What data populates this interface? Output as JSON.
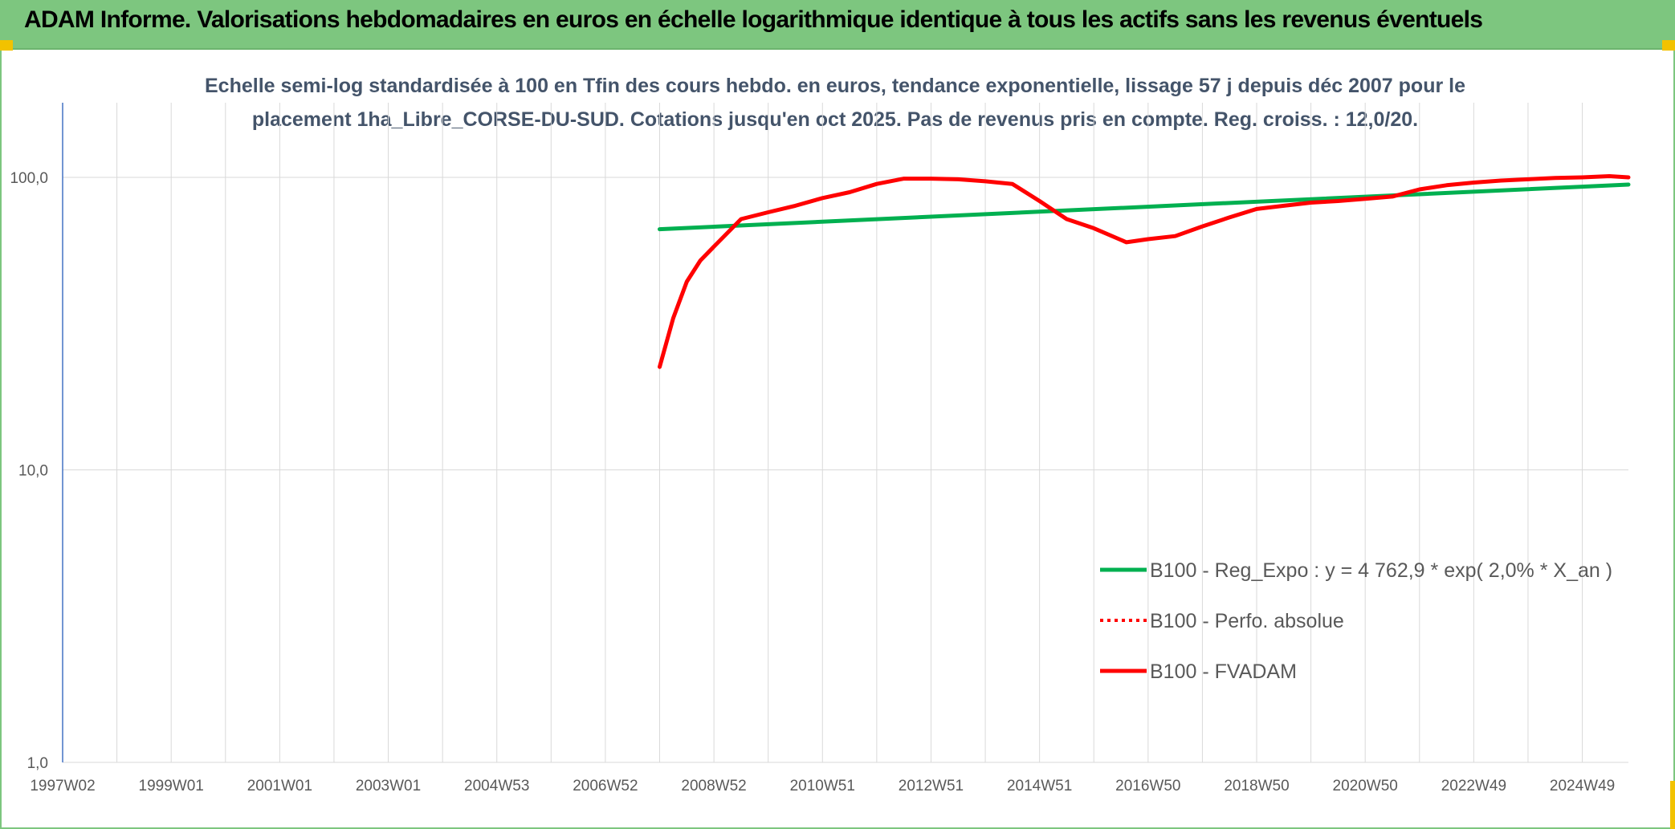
{
  "header": {
    "title": "ADAM Informe. Valorisations hebdomadaires en euros en échelle logarithmique identique à tous les actifs sans les revenus éventuels"
  },
  "colors": {
    "header_bg": "#7dc67f",
    "corner_accent": "#f2c200",
    "trend_line": "#00b050",
    "fvadam_line": "#ff0000",
    "perfo_line": "#ff0000",
    "grid": "#d9d9d9",
    "axis": "#4472c4"
  },
  "chart_data": {
    "type": "line",
    "title": "",
    "subtitle_lines": [
      "Echelle semi-log standardisée à 100 en Tfin des cours hebdo. en euros, tendance exponentielle, lissage 57 j depuis déc 2007 pour le",
      "placement 1ha_Libre_CORSE-DU-SUD. Cotations jusqu'en oct 2025. Pas de revenus pris en compte. Reg. croiss. : 12,0/20."
    ],
    "xlabel": "",
    "ylabel": "",
    "y_scale": "log",
    "ylim": [
      1,
      180
    ],
    "y_ticks": [
      {
        "value": 1,
        "label": "1,0"
      },
      {
        "value": 10,
        "label": "10,0"
      },
      {
        "value": 100,
        "label": "100,0"
      }
    ],
    "xlim": [
      1997.0,
      2025.85
    ],
    "x_ticks": [
      {
        "value": 1997.0,
        "label": "1997W02"
      },
      {
        "value": 1999.0,
        "label": "1999W01"
      },
      {
        "value": 2001.0,
        "label": "2001W01"
      },
      {
        "value": 2003.0,
        "label": "2003W01"
      },
      {
        "value": 2005.0,
        "label": "2004W53"
      },
      {
        "value": 2007.0,
        "label": "2006W52"
      },
      {
        "value": 2009.0,
        "label": "2008W52"
      },
      {
        "value": 2011.0,
        "label": "2010W51"
      },
      {
        "value": 2013.0,
        "label": "2012W51"
      },
      {
        "value": 2015.0,
        "label": "2014W51"
      },
      {
        "value": 2017.0,
        "label": "2016W50"
      },
      {
        "value": 2019.0,
        "label": "2018W50"
      },
      {
        "value": 2021.0,
        "label": "2020W50"
      },
      {
        "value": 2023.0,
        "label": "2022W49"
      },
      {
        "value": 2025.0,
        "label": "2024W49"
      }
    ],
    "x_gridlines": [
      1997.0,
      1998.0,
      1999.0,
      2000.0,
      2001.0,
      2002.0,
      2003.0,
      2004.0,
      2005.0,
      2006.0,
      2007.0,
      2008.0,
      2009.0,
      2010.0,
      2011.0,
      2012.0,
      2013.0,
      2014.0,
      2015.0,
      2016.0,
      2017.0,
      2018.0,
      2019.0,
      2020.0,
      2021.0,
      2022.0,
      2023.0,
      2024.0,
      2025.0
    ],
    "grid": true,
    "legend_position": "right-middle",
    "series": [
      {
        "name": "B100 - Reg_Expo : y = 4 762,9 * exp( 2,0% *  X_an )",
        "color": "#00b050",
        "style": "solid",
        "points": [
          [
            2008.0,
            66.5
          ],
          [
            2025.85,
            94.5
          ]
        ]
      },
      {
        "name": "B100 - Perfo. absolue",
        "color": "#ff0000",
        "style": "dotted",
        "points": []
      },
      {
        "name": "B100 - FVADAM",
        "color": "#ff0000",
        "style": "solid",
        "points": [
          [
            2008.0,
            22.5
          ],
          [
            2008.25,
            33
          ],
          [
            2008.5,
            44
          ],
          [
            2008.75,
            52
          ],
          [
            2009.0,
            58
          ],
          [
            2009.5,
            72
          ],
          [
            2010.0,
            76
          ],
          [
            2010.5,
            80
          ],
          [
            2011.0,
            85
          ],
          [
            2011.5,
            89
          ],
          [
            2012.0,
            95
          ],
          [
            2012.5,
            99
          ],
          [
            2013.0,
            99
          ],
          [
            2013.5,
            98.5
          ],
          [
            2014.0,
            97
          ],
          [
            2014.5,
            95
          ],
          [
            2015.0,
            83
          ],
          [
            2015.5,
            72
          ],
          [
            2016.0,
            67
          ],
          [
            2016.6,
            60
          ],
          [
            2017.0,
            61.5
          ],
          [
            2017.5,
            63
          ],
          [
            2018.0,
            68
          ],
          [
            2018.5,
            73
          ],
          [
            2019.0,
            78
          ],
          [
            2019.5,
            80
          ],
          [
            2020.0,
            82
          ],
          [
            2020.5,
            83
          ],
          [
            2021.0,
            84.5
          ],
          [
            2021.5,
            86
          ],
          [
            2022.0,
            91
          ],
          [
            2022.5,
            94
          ],
          [
            2023.0,
            96
          ],
          [
            2023.5,
            97.5
          ],
          [
            2024.0,
            98.5
          ],
          [
            2024.5,
            99.5
          ],
          [
            2025.0,
            100
          ],
          [
            2025.5,
            101
          ],
          [
            2025.85,
            100
          ]
        ]
      }
    ]
  }
}
